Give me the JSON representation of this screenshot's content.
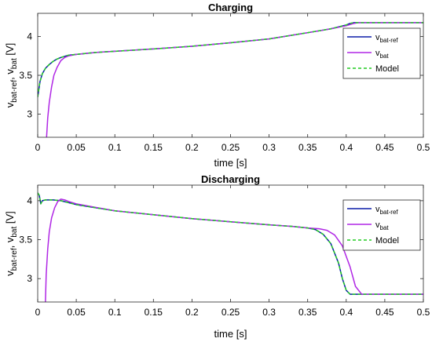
{
  "chart_data": [
    {
      "type": "line",
      "title": "Charging",
      "xlabel": "time [s]",
      "ylabel": {
        "main": "v",
        "sub1": "bat-ref",
        "sep": ", v",
        "sub2": "bat",
        "unit": " [V]"
      },
      "xlim": [
        0,
        0.5
      ],
      "ylim": [
        2.7,
        4.3
      ],
      "xticks": [
        0,
        0.05,
        0.1,
        0.15,
        0.2,
        0.25,
        0.3,
        0.35,
        0.4,
        0.45,
        0.5
      ],
      "xtick_labels": [
        "0",
        "0.05",
        "0.1",
        "0.15",
        "0.2",
        "0.25",
        "0.3",
        "0.35",
        "0.4",
        "0.45",
        "0.5"
      ],
      "yticks": [
        3,
        3.5,
        4
      ],
      "ytick_labels": [
        "3",
        "3.5",
        "4"
      ],
      "grid": false,
      "legend_position": "top-right",
      "series": [
        {
          "legend": {
            "main": "v",
            "sub": "bat-ref"
          },
          "color": "#0c1da8",
          "dash": "solid",
          "x": [
            0,
            0.003,
            0.006,
            0.01,
            0.015,
            0.02,
            0.025,
            0.03,
            0.04,
            0.05,
            0.075,
            0.1,
            0.15,
            0.2,
            0.25,
            0.3,
            0.35,
            0.38,
            0.4,
            0.405,
            0.41,
            0.45,
            0.5
          ],
          "y": [
            3.22,
            3.42,
            3.52,
            3.59,
            3.64,
            3.68,
            3.71,
            3.73,
            3.76,
            3.77,
            3.795,
            3.81,
            3.84,
            3.875,
            3.92,
            3.97,
            4.05,
            4.1,
            4.15,
            4.17,
            4.18,
            4.18,
            4.18
          ]
        },
        {
          "legend": {
            "main": "v",
            "sub": "bat"
          },
          "color": "#b027e5",
          "dash": "solid",
          "x": [
            0.0115,
            0.013,
            0.015,
            0.018,
            0.021,
            0.025,
            0.03,
            0.035,
            0.04,
            0.05,
            0.075,
            0.1,
            0.15,
            0.2,
            0.25,
            0.3,
            0.35,
            0.38,
            0.4,
            0.41,
            0.415,
            0.45,
            0.5
          ],
          "y": [
            2.7,
            2.95,
            3.15,
            3.35,
            3.5,
            3.6,
            3.69,
            3.73,
            3.75,
            3.77,
            3.795,
            3.81,
            3.84,
            3.875,
            3.92,
            3.97,
            4.05,
            4.1,
            4.14,
            4.17,
            4.18,
            4.18,
            4.18
          ]
        },
        {
          "legend": {
            "main": "Model",
            "sub": ""
          },
          "color": "#22cc22",
          "dash": "dashed",
          "x": [
            0,
            0.003,
            0.006,
            0.01,
            0.015,
            0.02,
            0.025,
            0.03,
            0.04,
            0.05,
            0.075,
            0.1,
            0.15,
            0.2,
            0.25,
            0.3,
            0.35,
            0.38,
            0.4,
            0.405,
            0.41,
            0.45,
            0.5
          ],
          "y": [
            3.22,
            3.42,
            3.52,
            3.59,
            3.64,
            3.68,
            3.71,
            3.73,
            3.76,
            3.77,
            3.795,
            3.81,
            3.84,
            3.875,
            3.92,
            3.97,
            4.05,
            4.1,
            4.15,
            4.17,
            4.18,
            4.18,
            4.18
          ]
        }
      ]
    },
    {
      "type": "line",
      "title": "Discharging",
      "xlabel": "time [s]",
      "ylabel": {
        "main": "v",
        "sub1": "bat-ref",
        "sep": ", v",
        "sub2": "bat",
        "unit": " [V]"
      },
      "xlim": [
        0,
        0.5
      ],
      "ylim": [
        2.7,
        4.2
      ],
      "xticks": [
        0,
        0.05,
        0.1,
        0.15,
        0.2,
        0.25,
        0.3,
        0.35,
        0.4,
        0.45,
        0.5
      ],
      "xtick_labels": [
        "0",
        "0.05",
        "0.1",
        "0.15",
        "0.2",
        "0.25",
        "0.3",
        "0.35",
        "0.4",
        "0.45",
        "0.5"
      ],
      "yticks": [
        3,
        3.5,
        4
      ],
      "ytick_labels": [
        "3",
        "3.5",
        "4"
      ],
      "grid": false,
      "legend_position": "top-right",
      "series": [
        {
          "legend": {
            "main": "v",
            "sub": "bat-ref"
          },
          "color": "#0c1da8",
          "dash": "solid",
          "x": [
            0,
            0.002,
            0.004,
            0.006,
            0.01,
            0.02,
            0.03,
            0.05,
            0.1,
            0.15,
            0.2,
            0.25,
            0.3,
            0.33,
            0.35,
            0.36,
            0.37,
            0.38,
            0.39,
            0.395,
            0.4,
            0.405,
            0.45,
            0.5
          ],
          "y": [
            4.1,
            4.07,
            3.96,
            4.0,
            4.01,
            4.01,
            4.0,
            3.95,
            3.87,
            3.82,
            3.77,
            3.73,
            3.69,
            3.67,
            3.65,
            3.63,
            3.57,
            3.45,
            3.2,
            3.0,
            2.85,
            2.8,
            2.8,
            2.8
          ]
        },
        {
          "legend": {
            "main": "v",
            "sub": "bat"
          },
          "color": "#b027e5",
          "dash": "solid",
          "x": [
            0.01,
            0.011,
            0.013,
            0.015,
            0.018,
            0.022,
            0.026,
            0.03,
            0.035,
            0.04,
            0.05,
            0.1,
            0.15,
            0.2,
            0.25,
            0.3,
            0.33,
            0.35,
            0.365,
            0.375,
            0.385,
            0.395,
            0.405,
            0.412,
            0.42,
            0.45,
            0.5
          ],
          "y": [
            2.7,
            3.05,
            3.38,
            3.6,
            3.78,
            3.91,
            3.99,
            4.02,
            4.01,
            3.99,
            3.96,
            3.87,
            3.82,
            3.77,
            3.73,
            3.69,
            3.67,
            3.65,
            3.64,
            3.62,
            3.56,
            3.42,
            3.15,
            2.9,
            2.8,
            2.8,
            2.8
          ]
        },
        {
          "legend": {
            "main": "Model",
            "sub": ""
          },
          "color": "#22cc22",
          "dash": "dashed",
          "x": [
            0,
            0.002,
            0.004,
            0.006,
            0.01,
            0.02,
            0.03,
            0.05,
            0.1,
            0.15,
            0.2,
            0.25,
            0.3,
            0.33,
            0.35,
            0.36,
            0.37,
            0.38,
            0.39,
            0.395,
            0.4,
            0.405,
            0.45,
            0.5
          ],
          "y": [
            4.1,
            4.07,
            3.96,
            4.0,
            4.01,
            4.01,
            4.0,
            3.95,
            3.87,
            3.82,
            3.77,
            3.73,
            3.69,
            3.67,
            3.65,
            3.63,
            3.57,
            3.45,
            3.2,
            3.0,
            2.85,
            2.8,
            2.8,
            2.8
          ]
        }
      ]
    }
  ]
}
